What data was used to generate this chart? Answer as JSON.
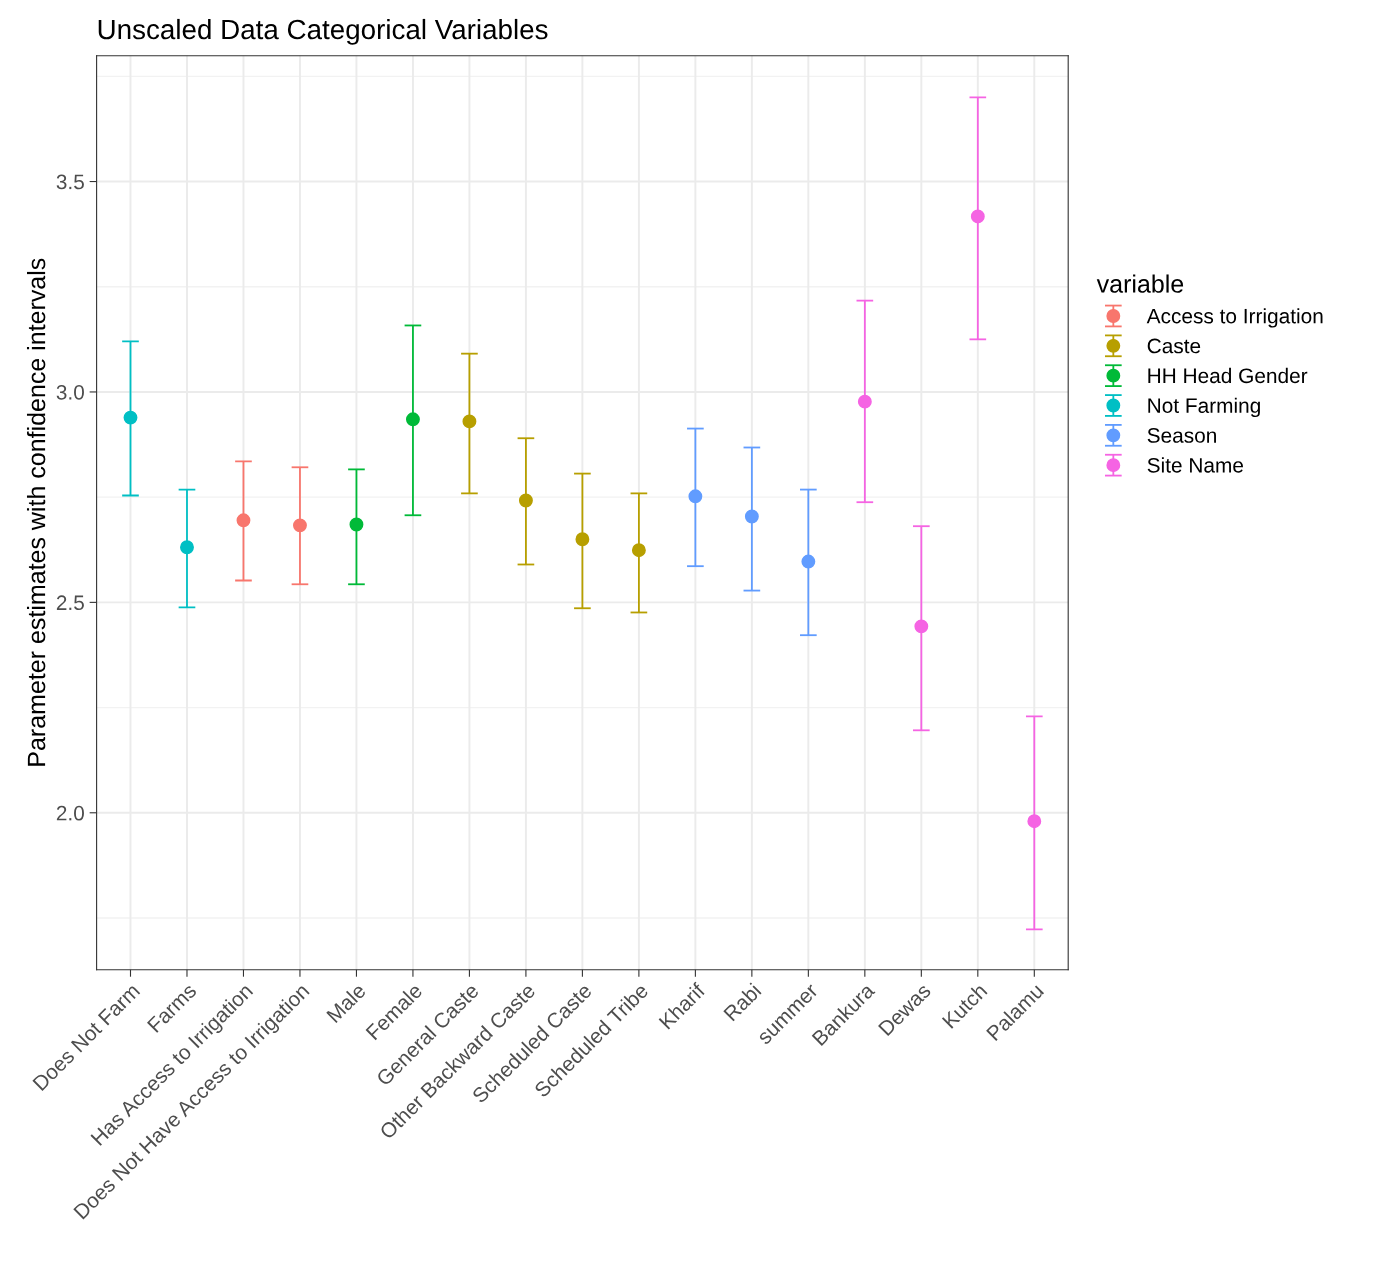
{
  "chart_data": {
    "type": "scatter",
    "title": "Unscaled Data Categorical Variables",
    "ylabel": "Parameter estimates with confidence intervals",
    "legend_title": "variable",
    "categories": [
      "Does Not Farm",
      "Farms",
      "Has Access to Irrigation",
      "Does Not Have Access to Irrigation",
      "Male",
      "Female",
      "General Caste",
      "Other Backward Caste",
      "Scheduled Caste",
      "Scheduled Tribe",
      "Kharif",
      "Rabi",
      "summer",
      "Bankura",
      "Dewas",
      "Kutch",
      "Palamu"
    ],
    "ylim": [
      1.627,
      3.799
    ],
    "yticks": [
      {
        "value": 2,
        "label": "2.0"
      },
      2.5,
      {
        "value": 3,
        "label": "3.0"
      },
      3.5
    ],
    "grid": true,
    "legend": "right",
    "marker": "circle",
    "series": [
      {
        "name": "Access to Irrigation",
        "color": "#F8766D",
        "values": [
          null,
          null,
          2.695,
          2.683,
          null,
          null,
          null,
          null,
          null,
          null,
          null,
          null,
          null,
          null,
          null,
          null,
          null
        ],
        "errors": [
          null,
          null,
          [
            2.552,
            2.835
          ],
          [
            2.543,
            2.821
          ],
          null,
          null,
          null,
          null,
          null,
          null,
          null,
          null,
          null,
          null,
          null,
          null,
          null
        ]
      },
      {
        "name": "Caste",
        "color": "#B79F00",
        "values": [
          null,
          null,
          null,
          null,
          null,
          null,
          2.93,
          2.742,
          2.65,
          2.624,
          null,
          null,
          null,
          null,
          null,
          null,
          null
        ],
        "errors": [
          null,
          null,
          null,
          null,
          null,
          null,
          [
            2.759,
            3.091
          ],
          [
            2.59,
            2.89
          ],
          [
            2.486,
            2.806
          ],
          [
            2.476,
            2.759
          ],
          null,
          null,
          null,
          null,
          null,
          null,
          null
        ]
      },
      {
        "name": "HH Head Gender",
        "color": "#00BA38",
        "values": [
          null,
          null,
          null,
          null,
          2.685,
          2.935,
          null,
          null,
          null,
          null,
          null,
          null,
          null,
          null,
          null,
          null,
          null
        ],
        "errors": [
          null,
          null,
          null,
          null,
          [
            2.543,
            2.816
          ],
          [
            2.707,
            3.158
          ],
          null,
          null,
          null,
          null,
          null,
          null,
          null,
          null,
          null,
          null,
          null
        ]
      },
      {
        "name": "Not Farming",
        "color": "#00BFC4",
        "values": [
          2.939,
          2.631,
          null,
          null,
          null,
          null,
          null,
          null,
          null,
          null,
          null,
          null,
          null,
          null,
          null,
          null,
          null
        ],
        "errors": [
          [
            2.754,
            3.12
          ],
          [
            2.488,
            2.768
          ],
          null,
          null,
          null,
          null,
          null,
          null,
          null,
          null,
          null,
          null,
          null,
          null,
          null,
          null,
          null
        ]
      },
      {
        "name": "Season",
        "color": "#619CFF",
        "values": [
          null,
          null,
          null,
          null,
          null,
          null,
          null,
          null,
          null,
          null,
          2.752,
          2.704,
          2.597,
          null,
          null,
          null,
          null
        ],
        "errors": [
          null,
          null,
          null,
          null,
          null,
          null,
          null,
          null,
          null,
          null,
          [
            2.586,
            2.913
          ],
          [
            2.528,
            2.868
          ],
          [
            2.422,
            2.768
          ],
          null,
          null,
          null,
          null
        ]
      },
      {
        "name": "Site Name",
        "color": "#F564E3",
        "values": [
          null,
          null,
          null,
          null,
          null,
          null,
          null,
          null,
          null,
          null,
          null,
          null,
          null,
          2.977,
          2.443,
          3.417,
          1.98
        ],
        "errors": [
          null,
          null,
          null,
          null,
          null,
          null,
          null,
          null,
          null,
          null,
          null,
          null,
          null,
          [
            2.738,
            3.217
          ],
          [
            2.196,
            2.681
          ],
          [
            3.125,
            3.7
          ],
          [
            1.723,
            2.229
          ]
        ]
      }
    ]
  }
}
